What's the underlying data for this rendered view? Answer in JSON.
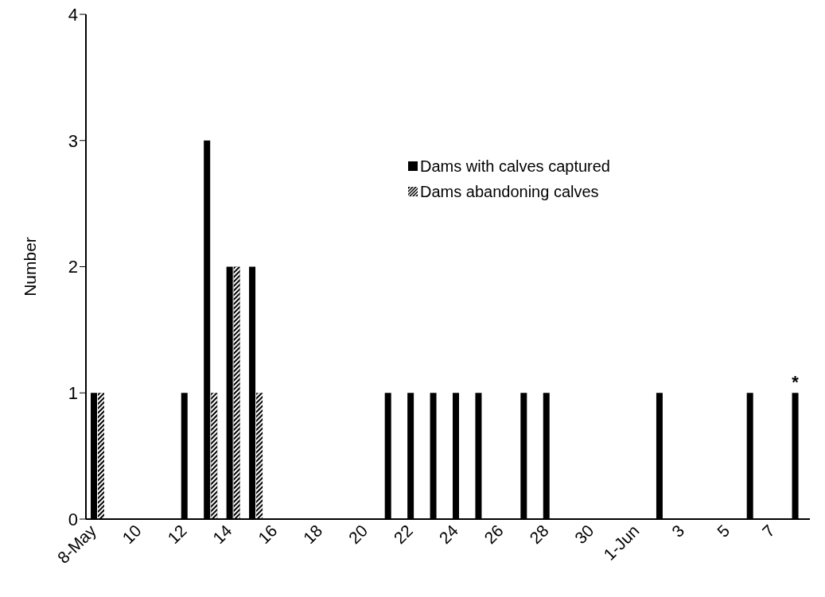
{
  "chart_data": {
    "type": "bar",
    "ylabel": "Number",
    "categories": [
      "8-May",
      null,
      "10",
      null,
      "12",
      null,
      "14",
      null,
      "16",
      null,
      "18",
      null,
      "20",
      null,
      "22",
      null,
      "24",
      null,
      "26",
      null,
      "28",
      null,
      "30",
      null,
      "1-Jun",
      null,
      "3",
      null,
      "5",
      null,
      "7",
      null
    ],
    "series": [
      {
        "name": "Dams with calves captured",
        "color": "#000000",
        "values": [
          1,
          0,
          0,
          0,
          1,
          3,
          2,
          2,
          0,
          0,
          0,
          0,
          0,
          1,
          1,
          1,
          1,
          1,
          0,
          1,
          1,
          0,
          0,
          0,
          0,
          1,
          0,
          0,
          0,
          1,
          0,
          1
        ],
        "value_labels": [
          null,
          null,
          null,
          null,
          null,
          null,
          null,
          null,
          null,
          null,
          null,
          null,
          null,
          null,
          null,
          null,
          null,
          null,
          null,
          null,
          null,
          null,
          null,
          null,
          null,
          null,
          null,
          null,
          null,
          null,
          null,
          "*"
        ]
      },
      {
        "name": "Dams abandoning calves",
        "color": "#000000",
        "values": [
          1,
          0,
          0,
          0,
          0,
          1,
          2,
          1,
          0,
          0,
          0,
          0,
          0,
          0,
          0,
          0,
          0,
          0,
          0,
          0,
          0,
          0,
          0,
          0,
          0,
          0,
          0,
          0,
          0,
          0,
          0,
          0
        ]
      }
    ],
    "ylim": [
      0,
      4
    ],
    "yticks": [
      0,
      1,
      2,
      3,
      4
    ],
    "grid": false,
    "legend": "top right"
  }
}
